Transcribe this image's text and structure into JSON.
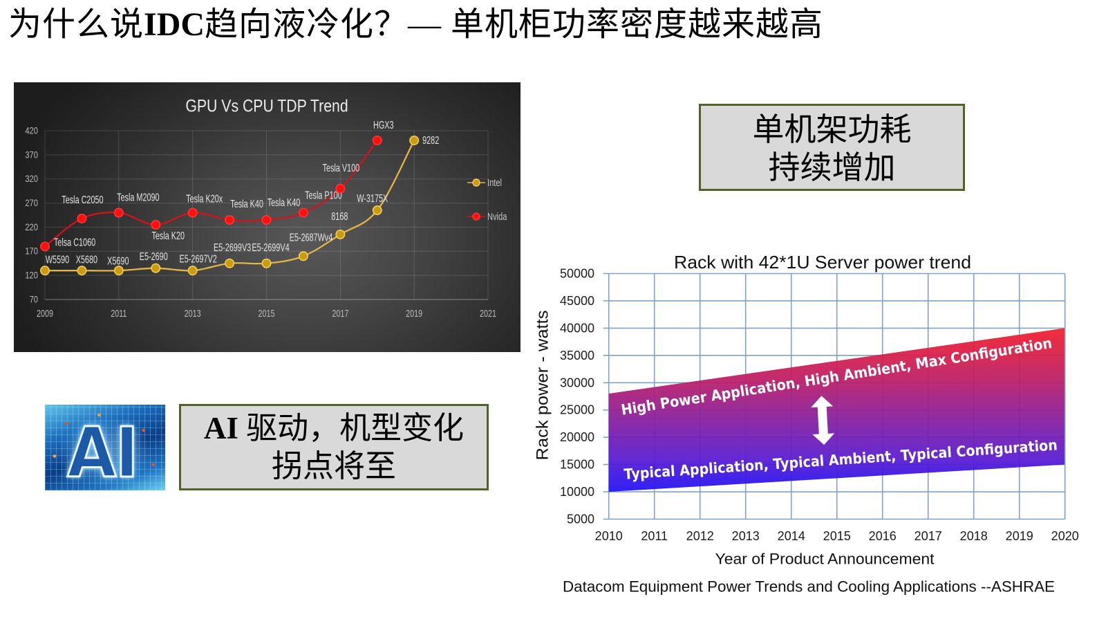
{
  "slide": {
    "title": {
      "prefix": "为什么说",
      "acronym": "IDC",
      "middle": "趋向液冷化？",
      "suffix": "— 单机柜功率密度越来越高"
    }
  },
  "callouts": {
    "rack_power": {
      "line1": "单机架功耗",
      "line2": "持续增加"
    },
    "ai_driven": {
      "line1_latin": "AI",
      "line1_cjk": " 驱动，机型变化",
      "line2": "拐点将至"
    }
  },
  "ai_image": {
    "label": "AI",
    "icon": "ai-circuit-board-image"
  },
  "colors": {
    "callout_fill": "#d9d9d9",
    "callout_border": "#4f6228",
    "intel": "#c99b12",
    "nvidia": "#ff1010",
    "rack_grid": "#7fa2c9",
    "band_top": "#f2202e",
    "band_bottom": "#2212f5"
  },
  "chart_data": [
    {
      "type": "line",
      "title": "GPU Vs CPU TDP Trend",
      "xlabel": "",
      "ylabel": "",
      "xlim": [
        2009,
        2021
      ],
      "ylim": [
        70,
        420
      ],
      "xticks": [
        2009,
        2011,
        2013,
        2015,
        2017,
        2019,
        2021
      ],
      "yticks": [
        70,
        120,
        170,
        220,
        270,
        320,
        370,
        420
      ],
      "grid": true,
      "legend_position": "right",
      "series": [
        {
          "name": "Intel",
          "color": "#c99b12",
          "line_color": "#e2b64a",
          "marker_stroke": "#f2cf55",
          "x": [
            2009,
            2010,
            2011,
            2012,
            2013,
            2014,
            2015,
            2016,
            2017,
            2018,
            2019
          ],
          "values": [
            130,
            130,
            130,
            135,
            130,
            145,
            145,
            160,
            205,
            255,
            400
          ],
          "labels": [
            "W5590",
            "X5680",
            "X5690",
            "E5-2690",
            "E5-2697V2",
            "E5-2699V3",
            "E5-2699V4",
            "E5-2687Wv4",
            "8168",
            "W-3175X",
            "9282"
          ],
          "label_offsets": [
            [
              18,
              -16
            ],
            [
              7,
              -16
            ],
            [
              -1,
              -14
            ],
            [
              -3,
              -17
            ],
            [
              8,
              -17
            ],
            [
              4,
              -23
            ],
            [
              6,
              -23
            ],
            [
              11,
              -27
            ],
            [
              -1,
              -26
            ],
            [
              -7,
              -17
            ],
            [
              24,
              0
            ]
          ]
        },
        {
          "name": "Nvida",
          "color": "#ff1010",
          "line_color": "#d0141c",
          "marker_stroke": "#ff3535",
          "x": [
            2009,
            2010,
            2011,
            2012,
            2013,
            2014,
            2015,
            2016,
            2017,
            2018
          ],
          "values": [
            180,
            238,
            250,
            225,
            250,
            235,
            235,
            250,
            300,
            400
          ],
          "labels": [
            "Telsa C1060",
            "Tesla C2050",
            "Tesla M2090",
            "Tesla K20",
            "Tesla K20x",
            "Tesla K40",
            "Tesla K40",
            "Tesla P100",
            "Tesla V100",
            "HGX3"
          ],
          "label_offsets": [
            [
              43,
              -6
            ],
            [
              1,
              -27
            ],
            [
              28,
              -22
            ],
            [
              18,
              16
            ],
            [
              17,
              -20
            ],
            [
              25,
              -23
            ],
            [
              25,
              -25
            ],
            [
              29,
              -25
            ],
            [
              1,
              -30
            ],
            [
              9,
              -22
            ]
          ]
        }
      ]
    },
    {
      "type": "area",
      "title": "Rack with 42*1U Server power trend",
      "xlabel": "Year of Product Announcement",
      "ylabel": "Rack power - watts",
      "xlim": [
        2010,
        2020
      ],
      "ylim": [
        5000,
        50000
      ],
      "xticks": [
        2010,
        2011,
        2012,
        2013,
        2014,
        2015,
        2016,
        2017,
        2018,
        2019,
        2020
      ],
      "yticks": [
        5000,
        10000,
        15000,
        20000,
        25000,
        30000,
        35000,
        40000,
        45000,
        50000
      ],
      "grid": true,
      "series": [
        {
          "name": "High Power Application, High Ambient, Max Configuration",
          "x": [
            2010,
            2020
          ],
          "values": [
            28000,
            40000
          ],
          "label_from": [
            2010.29,
            24100
          ],
          "label_to": [
            2019.73,
            36400
          ]
        },
        {
          "name": "Typical Application, Typical Ambient, Typical Configuration",
          "x": [
            2010,
            2020
          ],
          "values": [
            10000,
            15000
          ],
          "label_from": [
            2010.34,
            12300
          ],
          "label_to": [
            2019.84,
            17700
          ]
        }
      ],
      "annotations": [
        {
          "type": "double-arrow",
          "x": 2014.69,
          "from": 18600,
          "to": 27600
        }
      ],
      "source": "Datacom Equipment Power Trends and Cooling Applications --ASHRAE"
    }
  ]
}
